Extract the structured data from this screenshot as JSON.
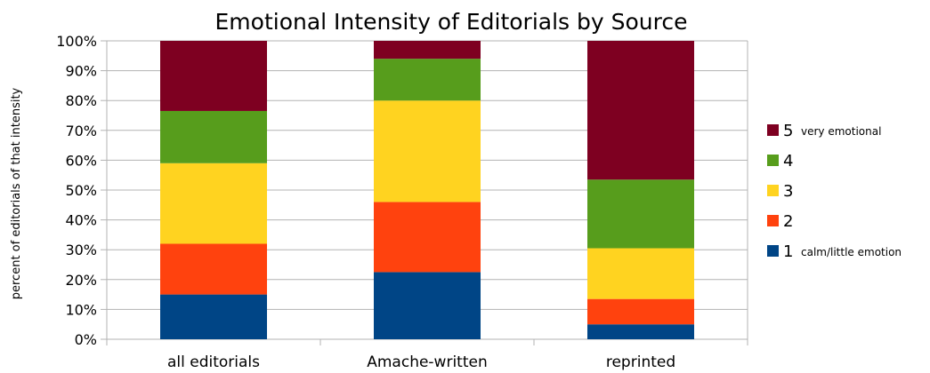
{
  "chart_data": {
    "type": "bar",
    "stacked": true,
    "title": "Emotional Intensity of Editorials by Source",
    "ylabel": "percent of editorials of that intensity",
    "xlabel": "",
    "ylim": [
      0,
      100
    ],
    "yticks": [
      "0%",
      "10%",
      "20%",
      "30%",
      "40%",
      "50%",
      "60%",
      "70%",
      "80%",
      "90%",
      "100%"
    ],
    "grid": true,
    "legend_position": "right",
    "categories": [
      "all editorials",
      "Amache-written",
      "reprinted"
    ],
    "series": [
      {
        "name": "1",
        "description": "calm/little emotion",
        "color": "#004586",
        "values": [
          15,
          22.5,
          5
        ]
      },
      {
        "name": "2",
        "description": "",
        "color": "#ff420e",
        "values": [
          17,
          23.5,
          8.5
        ]
      },
      {
        "name": "3",
        "description": "",
        "color": "#ffd320",
        "values": [
          27,
          34,
          17
        ]
      },
      {
        "name": "4",
        "description": "",
        "color": "#579d1c",
        "values": [
          17.5,
          14,
          23
        ]
      },
      {
        "name": "5",
        "description": "very emotional",
        "color": "#7e0021",
        "values": [
          23.5,
          6,
          46.5
        ]
      }
    ]
  }
}
